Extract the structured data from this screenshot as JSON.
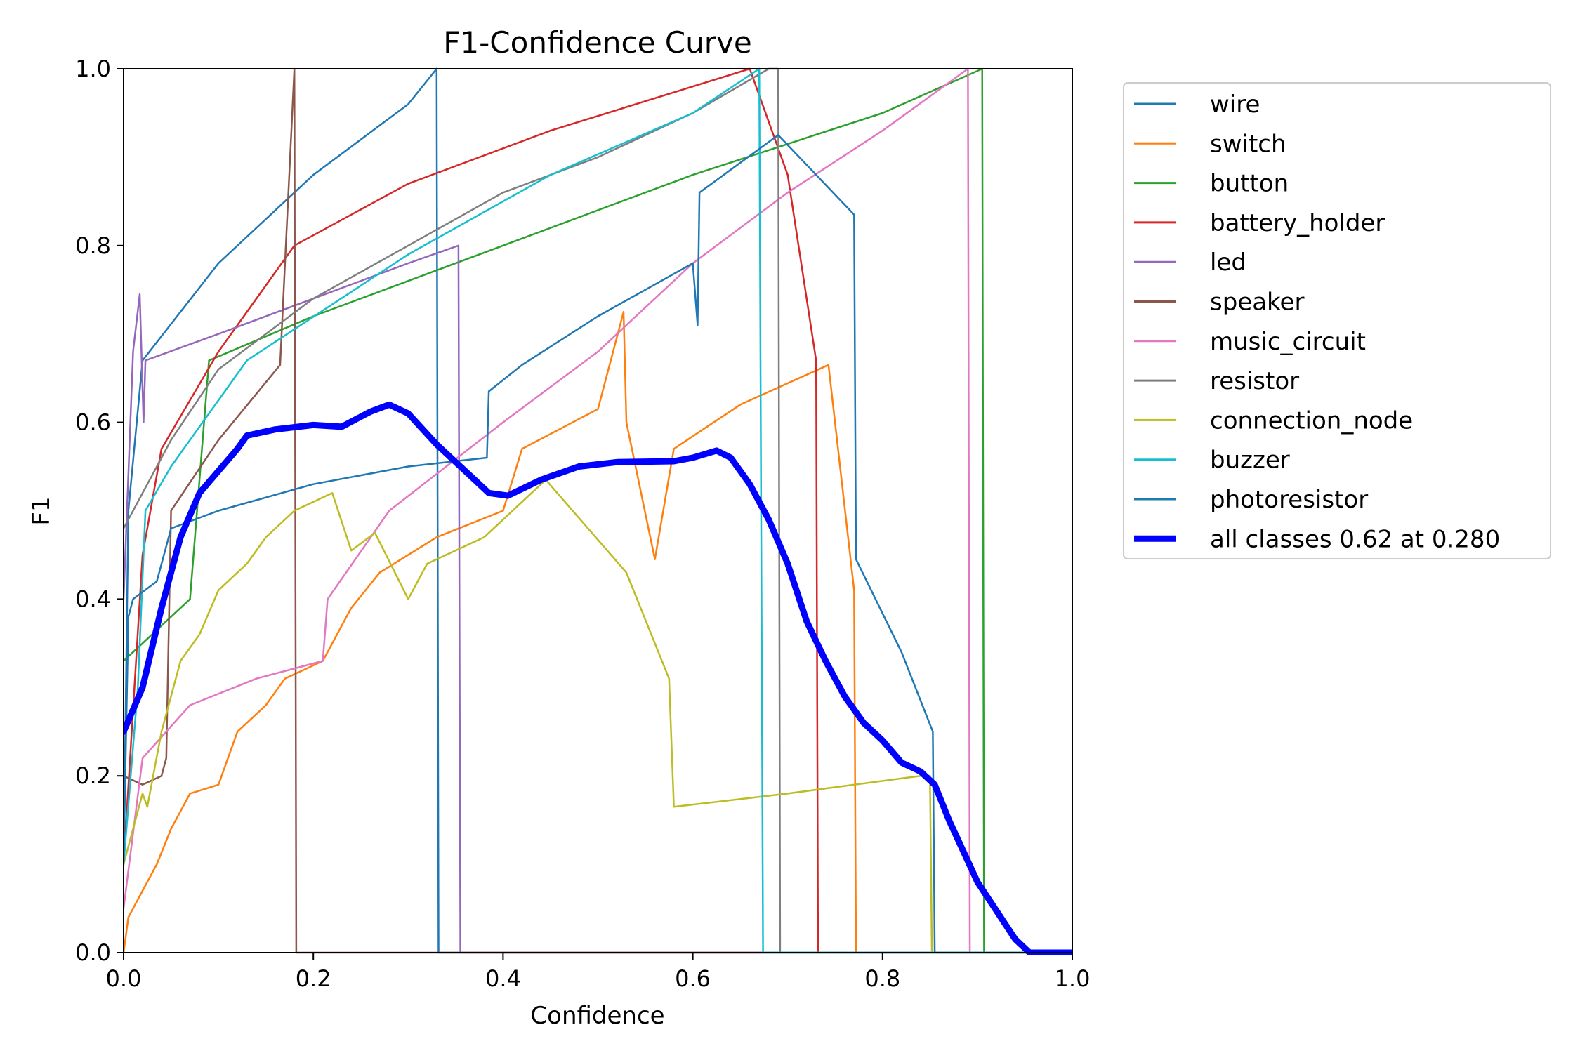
{
  "chart_data": {
    "type": "line",
    "title": "F1-Confidence Curve",
    "xlabel": "Confidence",
    "ylabel": "F1",
    "xlim": [
      0,
      1
    ],
    "ylim": [
      0,
      1
    ],
    "xticks": [
      "0.0",
      "0.2",
      "0.4",
      "0.6",
      "0.8",
      "1.0"
    ],
    "yticks": [
      "0.0",
      "0.2",
      "0.4",
      "0.6",
      "0.8",
      "1.0"
    ],
    "grid": false,
    "legend_position": "outside-top-right",
    "series": [
      {
        "name": "wire",
        "color": "#1f77b4",
        "points": [
          [
            0,
            0.1
          ],
          [
            0.005,
            0.5
          ],
          [
            0.02,
            0.67
          ],
          [
            0.1,
            0.78
          ],
          [
            0.2,
            0.88
          ],
          [
            0.3,
            0.96
          ],
          [
            0.33,
            1.0
          ],
          [
            0.332,
            0
          ],
          [
            1,
            0
          ]
        ]
      },
      {
        "name": "switch",
        "color": "#ff7f0e",
        "points": [
          [
            0,
            0
          ],
          [
            0.005,
            0.04
          ],
          [
            0.02,
            0.07
          ],
          [
            0.035,
            0.1
          ],
          [
            0.05,
            0.14
          ],
          [
            0.07,
            0.18
          ],
          [
            0.1,
            0.19
          ],
          [
            0.12,
            0.25
          ],
          [
            0.15,
            0.28
          ],
          [
            0.17,
            0.31
          ],
          [
            0.21,
            0.33
          ],
          [
            0.24,
            0.39
          ],
          [
            0.27,
            0.43
          ],
          [
            0.3,
            0.45
          ],
          [
            0.33,
            0.47
          ],
          [
            0.4,
            0.5
          ],
          [
            0.42,
            0.57
          ],
          [
            0.5,
            0.615
          ],
          [
            0.527,
            0.725
          ],
          [
            0.53,
            0.6
          ],
          [
            0.56,
            0.445
          ],
          [
            0.58,
            0.57
          ],
          [
            0.65,
            0.62
          ],
          [
            0.743,
            0.665
          ],
          [
            0.77,
            0.41
          ],
          [
            0.772,
            0
          ],
          [
            1,
            0
          ]
        ]
      },
      {
        "name": "button",
        "color": "#2ca02c",
        "points": [
          [
            0,
            0.33
          ],
          [
            0.07,
            0.4
          ],
          [
            0.09,
            0.67
          ],
          [
            0.2,
            0.72
          ],
          [
            0.4,
            0.8
          ],
          [
            0.6,
            0.88
          ],
          [
            0.8,
            0.95
          ],
          [
            0.905,
            1.0
          ],
          [
            0.907,
            0
          ],
          [
            1,
            0
          ]
        ]
      },
      {
        "name": "battery_holder",
        "color": "#d62728",
        "points": [
          [
            0,
            0.1
          ],
          [
            0.02,
            0.45
          ],
          [
            0.04,
            0.57
          ],
          [
            0.1,
            0.68
          ],
          [
            0.18,
            0.8
          ],
          [
            0.3,
            0.87
          ],
          [
            0.45,
            0.93
          ],
          [
            0.66,
            1.0
          ],
          [
            0.7,
            0.88
          ],
          [
            0.73,
            0.67
          ],
          [
            0.732,
            0
          ],
          [
            1,
            0
          ]
        ]
      },
      {
        "name": "led",
        "color": "#9467bd",
        "points": [
          [
            0,
            0.4
          ],
          [
            0.01,
            0.68
          ],
          [
            0.017,
            0.745
          ],
          [
            0.021,
            0.6
          ],
          [
            0.023,
            0.67
          ],
          [
            0.1,
            0.7
          ],
          [
            0.2,
            0.74
          ],
          [
            0.3,
            0.78
          ],
          [
            0.353,
            0.8
          ],
          [
            0.355,
            0
          ],
          [
            1,
            0
          ]
        ]
      },
      {
        "name": "speaker",
        "color": "#8c564b",
        "points": [
          [
            0,
            0.2
          ],
          [
            0.02,
            0.19
          ],
          [
            0.04,
            0.2
          ],
          [
            0.045,
            0.22
          ],
          [
            0.05,
            0.5
          ],
          [
            0.1,
            0.58
          ],
          [
            0.165,
            0.665
          ],
          [
            0.18,
            1.0
          ],
          [
            0.182,
            0
          ],
          [
            1,
            0
          ]
        ]
      },
      {
        "name": "music_circuit",
        "color": "#e377c2",
        "points": [
          [
            0,
            0.05
          ],
          [
            0.02,
            0.22
          ],
          [
            0.07,
            0.28
          ],
          [
            0.14,
            0.31
          ],
          [
            0.21,
            0.33
          ],
          [
            0.215,
            0.4
          ],
          [
            0.28,
            0.5
          ],
          [
            0.4,
            0.6
          ],
          [
            0.5,
            0.68
          ],
          [
            0.6,
            0.78
          ],
          [
            0.7,
            0.86
          ],
          [
            0.8,
            0.93
          ],
          [
            0.89,
            1.0
          ],
          [
            0.892,
            0
          ],
          [
            1,
            0
          ]
        ]
      },
      {
        "name": "resistor",
        "color": "#7f7f7f",
        "points": [
          [
            0,
            0.48
          ],
          [
            0.05,
            0.58
          ],
          [
            0.1,
            0.66
          ],
          [
            0.2,
            0.74
          ],
          [
            0.3,
            0.8
          ],
          [
            0.4,
            0.86
          ],
          [
            0.5,
            0.9
          ],
          [
            0.6,
            0.95
          ],
          [
            0.68,
            1.0
          ],
          [
            0.69,
            1.0
          ],
          [
            0.692,
            0
          ],
          [
            1,
            0
          ]
        ]
      },
      {
        "name": "connection_node",
        "color": "#bcbd22",
        "points": [
          [
            0,
            0.1
          ],
          [
            0.02,
            0.18
          ],
          [
            0.025,
            0.165
          ],
          [
            0.04,
            0.25
          ],
          [
            0.06,
            0.33
          ],
          [
            0.08,
            0.36
          ],
          [
            0.1,
            0.41
          ],
          [
            0.13,
            0.44
          ],
          [
            0.15,
            0.47
          ],
          [
            0.18,
            0.5
          ],
          [
            0.22,
            0.52
          ],
          [
            0.24,
            0.455
          ],
          [
            0.265,
            0.475
          ],
          [
            0.3,
            0.4
          ],
          [
            0.32,
            0.44
          ],
          [
            0.38,
            0.47
          ],
          [
            0.42,
            0.51
          ],
          [
            0.445,
            0.535
          ],
          [
            0.53,
            0.43
          ],
          [
            0.575,
            0.31
          ],
          [
            0.58,
            0.165
          ],
          [
            0.7,
            0.18
          ],
          [
            0.84,
            0.2
          ],
          [
            0.85,
            0.2
          ],
          [
            0.852,
            0
          ],
          [
            1,
            0
          ]
        ]
      },
      {
        "name": "buzzer",
        "color": "#17becf",
        "points": [
          [
            0,
            0.1
          ],
          [
            0.015,
            0.3
          ],
          [
            0.023,
            0.5
          ],
          [
            0.05,
            0.55
          ],
          [
            0.13,
            0.67
          ],
          [
            0.3,
            0.79
          ],
          [
            0.45,
            0.88
          ],
          [
            0.6,
            0.95
          ],
          [
            0.67,
            1.0
          ],
          [
            0.674,
            0
          ],
          [
            1,
            0
          ]
        ]
      },
      {
        "name": "photoresistor",
        "color": "#1f77b4",
        "points": [
          [
            0,
            0.1
          ],
          [
            0.005,
            0.38
          ],
          [
            0.01,
            0.4
          ],
          [
            0.035,
            0.42
          ],
          [
            0.05,
            0.48
          ],
          [
            0.1,
            0.5
          ],
          [
            0.2,
            0.53
          ],
          [
            0.3,
            0.55
          ],
          [
            0.383,
            0.56
          ],
          [
            0.385,
            0.635
          ],
          [
            0.42,
            0.665
          ],
          [
            0.5,
            0.72
          ],
          [
            0.6,
            0.78
          ],
          [
            0.605,
            0.71
          ],
          [
            0.607,
            0.86
          ],
          [
            0.69,
            0.925
          ],
          [
            0.77,
            0.835
          ],
          [
            0.772,
            0.445
          ],
          [
            0.82,
            0.34
          ],
          [
            0.853,
            0.25
          ],
          [
            0.855,
            0
          ],
          [
            1,
            0
          ]
        ]
      },
      {
        "name": "all classes 0.62 at 0.280",
        "color": "#0000ff",
        "bold": true,
        "points": [
          [
            0,
            0.25
          ],
          [
            0.02,
            0.3
          ],
          [
            0.04,
            0.39
          ],
          [
            0.06,
            0.47
          ],
          [
            0.08,
            0.52
          ],
          [
            0.1,
            0.545
          ],
          [
            0.12,
            0.57
          ],
          [
            0.13,
            0.585
          ],
          [
            0.16,
            0.592
          ],
          [
            0.2,
            0.597
          ],
          [
            0.23,
            0.595
          ],
          [
            0.26,
            0.612
          ],
          [
            0.28,
            0.62
          ],
          [
            0.3,
            0.61
          ],
          [
            0.33,
            0.575
          ],
          [
            0.36,
            0.545
          ],
          [
            0.385,
            0.52
          ],
          [
            0.405,
            0.517
          ],
          [
            0.44,
            0.535
          ],
          [
            0.48,
            0.55
          ],
          [
            0.52,
            0.555
          ],
          [
            0.58,
            0.556
          ],
          [
            0.6,
            0.56
          ],
          [
            0.625,
            0.568
          ],
          [
            0.64,
            0.56
          ],
          [
            0.66,
            0.53
          ],
          [
            0.68,
            0.49
          ],
          [
            0.7,
            0.44
          ],
          [
            0.72,
            0.375
          ],
          [
            0.74,
            0.33
          ],
          [
            0.76,
            0.29
          ],
          [
            0.78,
            0.26
          ],
          [
            0.8,
            0.24
          ],
          [
            0.82,
            0.215
          ],
          [
            0.84,
            0.205
          ],
          [
            0.855,
            0.19
          ],
          [
            0.87,
            0.15
          ],
          [
            0.9,
            0.08
          ],
          [
            0.94,
            0.015
          ],
          [
            0.955,
            0
          ],
          [
            1,
            0
          ]
        ]
      }
    ]
  }
}
